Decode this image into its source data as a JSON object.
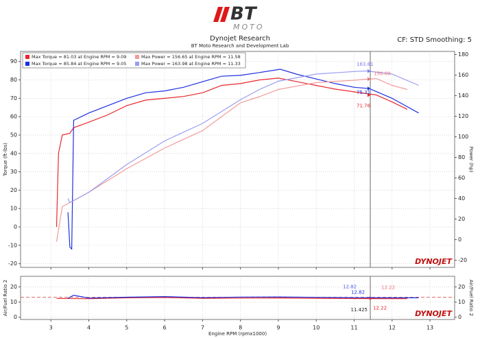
{
  "chart_data": [
    {
      "type": "line",
      "logo": "BT",
      "logo_sub": "MOTO",
      "title": "Dynojet Research",
      "subtitle": "BT Moto Research and Development Lab",
      "note": "CF: STD Smoothing: 5",
      "y_label": "Torque (ft-lbs)",
      "y2_label": "Power (hp)",
      "watermark": "DYNOJET",
      "xlim": [
        2.2,
        13.65
      ],
      "xticks": [
        3,
        4,
        5,
        6,
        7,
        8,
        9,
        10,
        11,
        12,
        13
      ],
      "ylim": [
        -22,
        95.5
      ],
      "yticks": [
        -20,
        -10,
        0,
        10,
        20,
        30,
        40,
        50,
        60,
        70,
        80,
        90
      ],
      "y2lim": [
        -27,
        183
      ],
      "y2ticks": [
        -20,
        0,
        20,
        40,
        60,
        80,
        100,
        120,
        140,
        160,
        180
      ],
      "grid": true,
      "legend": "upper left",
      "series": [
        {
          "name": "Max Torque = 81.03 at Engine RPM = 9.09",
          "color": "#e8262b",
          "x": [
            3.15,
            3.2,
            3.3,
            3.5,
            3.6,
            4,
            4.5,
            5,
            5.5,
            6,
            6.5,
            7,
            7.5,
            8,
            8.5,
            9,
            9.5,
            10,
            10.5,
            11,
            11.58,
            12,
            12.4
          ],
          "values": [
            0,
            40,
            50,
            51,
            54,
            57,
            61,
            66,
            69,
            70,
            71,
            73,
            77,
            78,
            80,
            81,
            79,
            77,
            75,
            73.5,
            71.8,
            68,
            64
          ]
        },
        {
          "name": "Max Torque = 85.84 at Engine RPM = 9.05",
          "color": "#1c2ee0",
          "x": [
            3.45,
            3.5,
            3.55,
            3.6,
            4,
            4.5,
            5,
            5.5,
            6,
            6.5,
            7,
            7.5,
            8,
            8.5,
            9.05,
            9.5,
            10,
            10.5,
            11,
            11.4,
            12,
            12.7
          ],
          "values": [
            8,
            -11,
            -12,
            58,
            62,
            66,
            70,
            73,
            74,
            76,
            79,
            82,
            82.5,
            84,
            85.8,
            83,
            80.5,
            78,
            76,
            75.3,
            70,
            62
          ]
        },
        {
          "name": "Max Power = 156.65 at Engine RPM = 11.58",
          "color": "#f29a9a",
          "axis": "y2",
          "x": [
            3.15,
            3.3,
            3.5,
            4,
            5,
            6,
            7,
            8,
            8.5,
            9,
            10,
            11,
            11.58,
            12,
            12.4
          ],
          "values": [
            -2,
            32,
            36,
            46,
            69,
            89,
            106,
            133,
            139,
            146,
            152.7,
            155,
            156.65,
            150,
            146
          ]
        },
        {
          "name": "Max Power = 163.98 at Engine RPM = 11.33",
          "color": "#9a9cf0",
          "axis": "y2",
          "x": [
            3.45,
            3.5,
            4,
            5,
            6,
            7,
            8,
            8.5,
            9,
            10,
            11,
            11.33,
            12,
            12.7
          ],
          "values": [
            40,
            36,
            46,
            73,
            96,
            113,
            136,
            146,
            154,
            161,
            163.5,
            163.98,
            161,
            150
          ]
        }
      ],
      "cursor_x": 11.425,
      "cursor_values": [
        {
          "value": 163.81,
          "axis": "y2",
          "color": "#7a7cf0"
        },
        {
          "value": 156.09,
          "axis": "y2",
          "color": "#f07070"
        },
        {
          "value": 75.31,
          "axis": "y",
          "color": "#1c2ee0"
        },
        {
          "value": 71.76,
          "axis": "y",
          "color": "#e8262b"
        }
      ]
    },
    {
      "type": "line",
      "x_label": "Engine RPM (rpmx1000)",
      "y_label": "Air/Fuel Ratio 2",
      "y2_label": "Air/Fuel Ratio 2",
      "watermark": "DYNOJET",
      "xlim": [
        2.2,
        13.65
      ],
      "xticks": [
        3,
        4,
        5,
        6,
        7,
        8,
        9,
        10,
        11,
        12,
        13
      ],
      "ylim": [
        -1.5,
        27
      ],
      "yticks": [
        0,
        10,
        20
      ],
      "y2ticks": [
        0,
        10,
        20
      ],
      "reference": 13.2,
      "grid": true,
      "series": [
        {
          "color": "#e8262b",
          "x": [
            3.15,
            4,
            5,
            6,
            7,
            8,
            9,
            10,
            11,
            12,
            12.4
          ],
          "values": [
            12.4,
            12.2,
            12.8,
            13,
            12.5,
            12.6,
            12.7,
            12.5,
            12.3,
            12.2,
            12.2
          ]
        },
        {
          "color": "#1c2ee0",
          "x": [
            3.45,
            3.6,
            4,
            5,
            6,
            7,
            8,
            9,
            10,
            11,
            12,
            12.7
          ],
          "values": [
            12.5,
            14.5,
            12.6,
            13.2,
            13.6,
            12.9,
            13.3,
            13.4,
            13.1,
            12.9,
            12.8,
            12.8
          ]
        }
      ],
      "cursor_x": 11.425,
      "cursor_values": [
        {
          "value": 12.82,
          "color": "#5a5cf0"
        },
        {
          "value": 12.82,
          "color": "#1c2ee0"
        },
        {
          "value": 12.22,
          "color": "#f07070"
        },
        {
          "value": 12.22,
          "color": "#e8262b"
        }
      ]
    }
  ]
}
